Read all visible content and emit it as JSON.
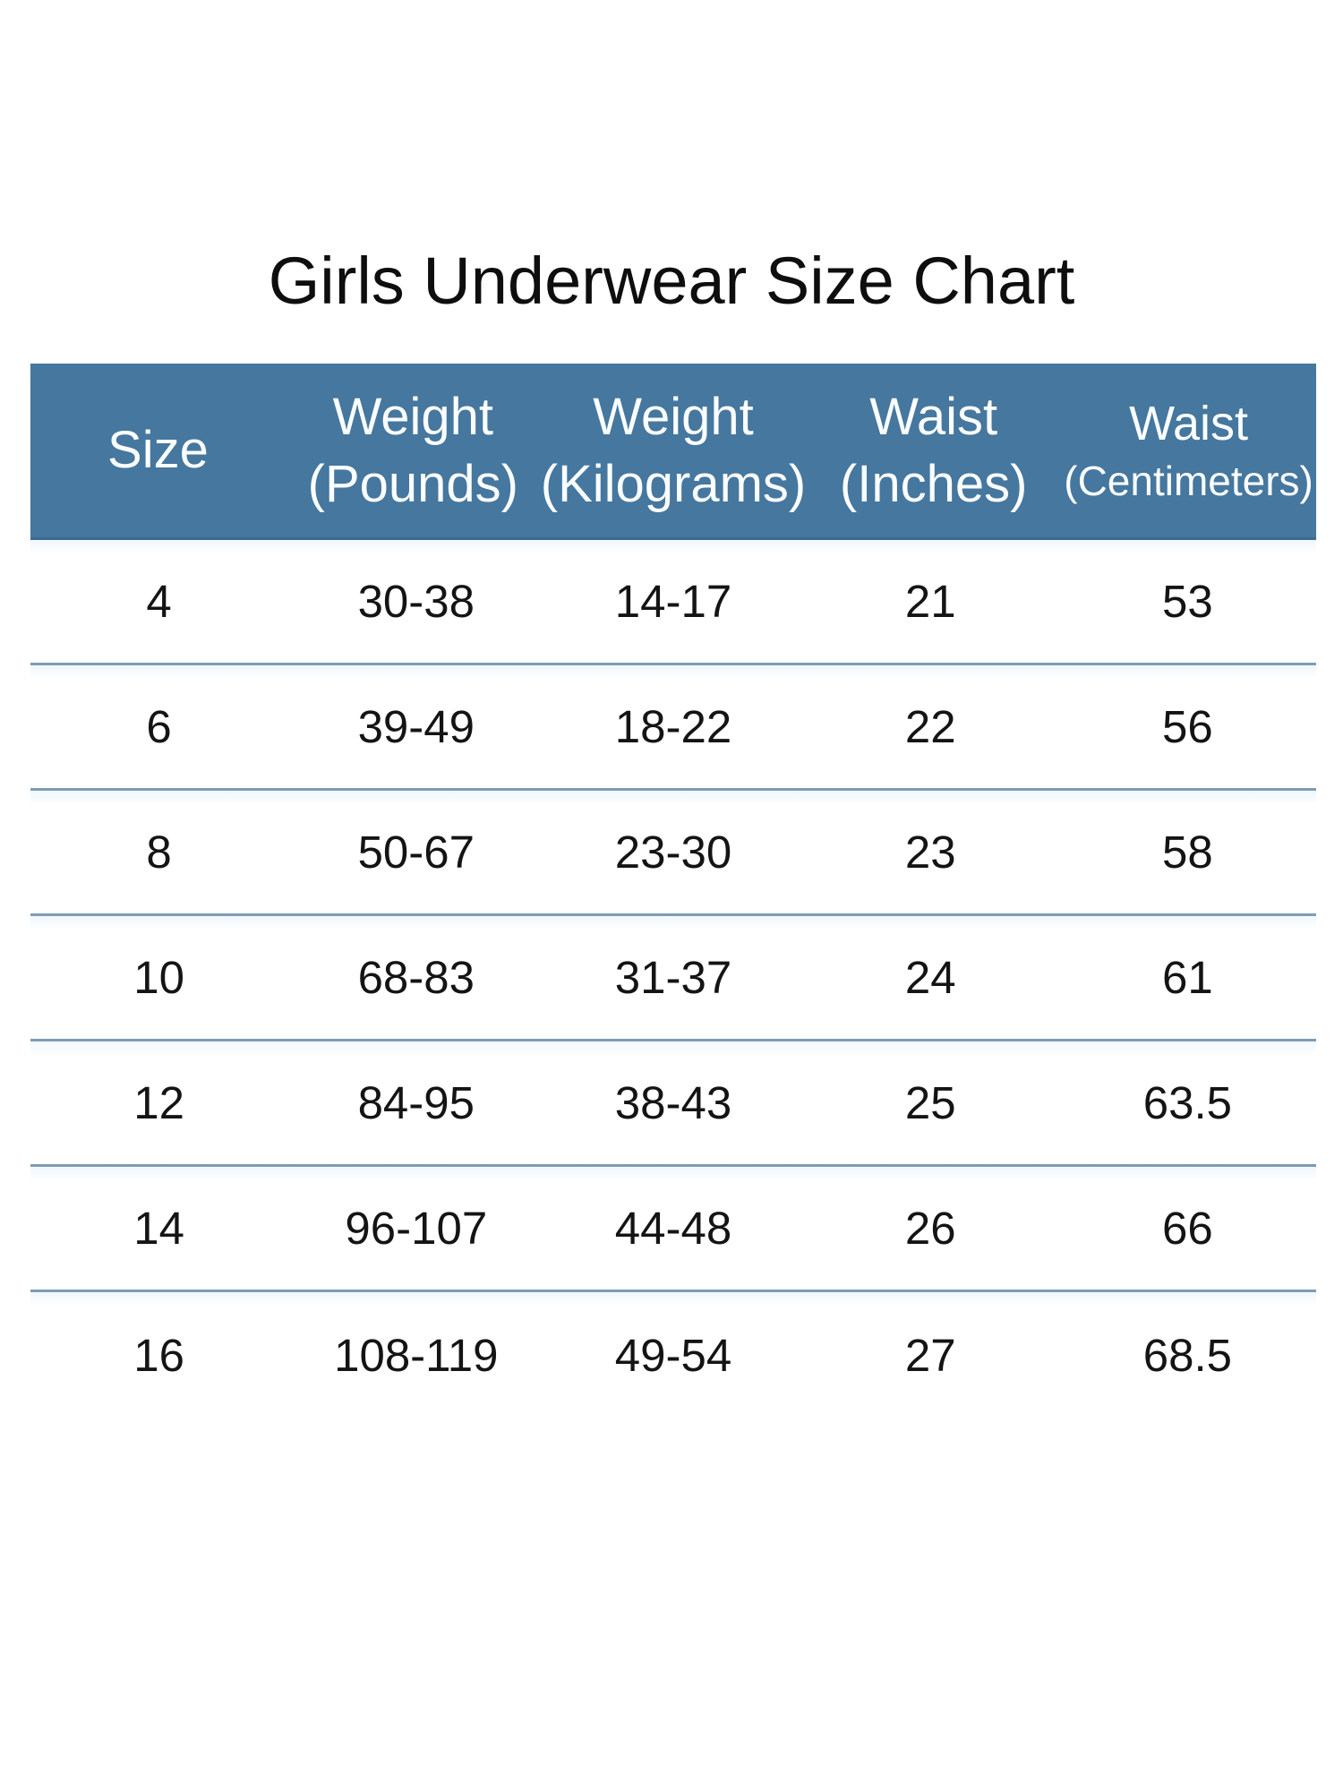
{
  "title": "Girls Underwear Size Chart",
  "colors": {
    "header_background": "#45779f",
    "header_text": "#fbfdfe",
    "header_bottom_edge": "#3d6a90",
    "row_separator": "#7d9cb5",
    "row_top_tint": "#f0f7fc",
    "body_text": "#141414",
    "page_background": "#ffffff"
  },
  "chart_data": {
    "type": "table",
    "title": "Girls Underwear Size Chart",
    "columns": [
      {
        "lines": [
          "Size"
        ]
      },
      {
        "lines": [
          "Weight",
          "(Pounds)"
        ]
      },
      {
        "lines": [
          "Weight",
          "(Kilograms)"
        ]
      },
      {
        "lines": [
          "Waist",
          "(Inches)"
        ]
      },
      {
        "lines": [
          "Waist",
          "(Centimeters)"
        ]
      }
    ],
    "rows": [
      [
        "4",
        "30-38",
        "14-17",
        "21",
        "53"
      ],
      [
        "6",
        "39-49",
        "18-22",
        "22",
        "56"
      ],
      [
        "8",
        "50-67",
        "23-30",
        "23",
        "58"
      ],
      [
        "10",
        "68-83",
        "31-37",
        "24",
        "61"
      ],
      [
        "12",
        "84-95",
        "38-43",
        "25",
        "63.5"
      ],
      [
        "14",
        "96-107",
        "44-48",
        "26",
        "66"
      ],
      [
        "16",
        "108-119",
        "49-54",
        "27",
        "68.5"
      ]
    ]
  }
}
